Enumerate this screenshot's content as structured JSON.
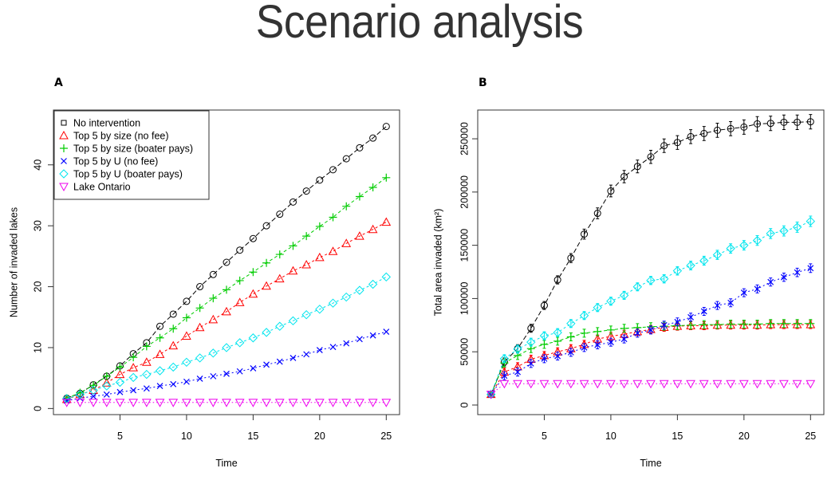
{
  "title": "Scenario analysis",
  "panels": [
    "A",
    "B"
  ],
  "legend": {
    "entries": [
      {
        "label": "No intervention",
        "marker": "square",
        "color": "#000000"
      },
      {
        "label": "Top 5 by size (no fee)",
        "marker": "triangle-up",
        "color": "#ff0000"
      },
      {
        "label": "Top 5 by size (boater pays)",
        "marker": "plus",
        "color": "#00cc00"
      },
      {
        "label": "Top 5 by U (no fee)",
        "marker": "x",
        "color": "#0000ff"
      },
      {
        "label": "Top 5 by U (boater pays)",
        "marker": "diamond",
        "color": "#00e5ee"
      },
      {
        "label": "Lake Ontario",
        "marker": "triangle-down",
        "color": "#ee00ee"
      }
    ],
    "placement": "top-left"
  },
  "chart_data": [
    {
      "panel": "A",
      "type": "line",
      "title": "",
      "xlabel": "Time",
      "ylabel": "Number of invaded lakes",
      "xlim": [
        0,
        26
      ],
      "ylim": [
        -1,
        49
      ],
      "xticks": [
        5,
        10,
        15,
        20,
        25
      ],
      "yticks": [
        0,
        10,
        20,
        30,
        40
      ],
      "grid": false,
      "legend_placement": "top-left",
      "x": [
        1,
        2,
        3,
        4,
        5,
        6,
        7,
        8,
        9,
        10,
        11,
        12,
        13,
        14,
        15,
        16,
        17,
        18,
        19,
        20,
        21,
        22,
        23,
        24,
        25
      ],
      "series": [
        {
          "name": "No intervention",
          "values": [
            1.7,
            2.5,
            3.9,
            5.3,
            7.0,
            9.0,
            10.8,
            13.5,
            15.5,
            17.6,
            20.0,
            22.0,
            24.0,
            26.0,
            27.9,
            30.0,
            31.9,
            33.9,
            35.7,
            37.5,
            39.2,
            41.0,
            42.8,
            44.4,
            46.3
          ]
        },
        {
          "name": "Top 5 by size (no fee)",
          "values": [
            1.5,
            2.3,
            3.0,
            4.2,
            5.6,
            6.7,
            7.6,
            8.9,
            10.3,
            11.9,
            13.3,
            14.6,
            15.9,
            17.4,
            18.8,
            20.1,
            21.3,
            22.6,
            23.6,
            24.8,
            25.8,
            27.1,
            28.3,
            29.4,
            30.6
          ]
        },
        {
          "name": "Top 5 by size (boater pays)",
          "values": [
            1.7,
            2.6,
            3.8,
            5.3,
            6.8,
            8.4,
            10.2,
            11.6,
            13.1,
            14.9,
            16.5,
            18.1,
            19.5,
            21.0,
            22.4,
            23.9,
            25.3,
            26.7,
            28.3,
            29.9,
            31.4,
            33.2,
            34.8,
            36.3,
            37.9
          ]
        },
        {
          "name": "Top 5 by U (no fee)",
          "values": [
            1.3,
            1.7,
            2.0,
            2.3,
            2.7,
            3.0,
            3.3,
            3.7,
            4.0,
            4.4,
            4.9,
            5.3,
            5.7,
            6.1,
            6.6,
            7.2,
            7.7,
            8.3,
            8.9,
            9.6,
            10.1,
            10.7,
            11.4,
            12.0,
            12.6
          ]
        },
        {
          "name": "Top 5 by U (boater pays)",
          "values": [
            1.6,
            2.3,
            3.0,
            3.7,
            4.3,
            5.1,
            5.6,
            6.2,
            6.8,
            7.6,
            8.3,
            9.1,
            10.0,
            10.8,
            11.6,
            12.5,
            13.5,
            14.4,
            15.4,
            16.3,
            17.3,
            18.3,
            19.4,
            20.4,
            21.6
          ]
        },
        {
          "name": "Lake Ontario",
          "values": [
            1.0,
            1.0,
            1.0,
            1.0,
            1.0,
            1.0,
            1.0,
            1.0,
            1.0,
            1.0,
            1.0,
            1.0,
            1.0,
            1.0,
            1.0,
            1.0,
            1.0,
            1.0,
            1.0,
            1.0,
            1.0,
            1.0,
            1.0,
            1.0,
            1.0
          ]
        }
      ]
    },
    {
      "panel": "B",
      "type": "line",
      "title": "",
      "xlabel": "Time",
      "ylabel": "Total area invaded (km²)",
      "xlim": [
        0,
        26
      ],
      "ylim": [
        -9000,
        277000
      ],
      "xticks": [
        5,
        10,
        15,
        20,
        25
      ],
      "yticks": [
        0,
        50000,
        100000,
        150000,
        200000,
        250000
      ],
      "grid": false,
      "error_bars": true,
      "x": [
        1,
        2,
        3,
        4,
        5,
        6,
        7,
        8,
        9,
        10,
        11,
        12,
        13,
        14,
        15,
        16,
        17,
        18,
        19,
        20,
        21,
        22,
        23,
        24,
        25
      ],
      "series": [
        {
          "name": "No intervention",
          "values": [
            10000,
            40500,
            53000,
            72000,
            93500,
            117500,
            138000,
            160500,
            180000,
            201000,
            214500,
            224000,
            233000,
            243500,
            246500,
            252000,
            255000,
            258000,
            259500,
            261000,
            264000,
            264500,
            265500,
            265500,
            266000
          ]
        },
        {
          "name": "Top 5 by size (no fee)",
          "values": [
            10000,
            31000,
            36000,
            43000,
            46500,
            50000,
            53000,
            57000,
            62000,
            64500,
            66500,
            69000,
            71000,
            73000,
            74000,
            74500,
            74500,
            75000,
            75000,
            75000,
            75000,
            75500,
            75500,
            75500,
            75500
          ]
        },
        {
          "name": "Top 5 by size (boater pays)",
          "values": [
            10000,
            39500,
            46500,
            53000,
            57000,
            60000,
            64000,
            67500,
            69000,
            70500,
            72000,
            72700,
            73500,
            74000,
            74500,
            75000,
            75500,
            75500,
            76000,
            76000,
            76000,
            76500,
            76500,
            76500,
            76500
          ]
        },
        {
          "name": "Top 5 by U (no fee)",
          "values": [
            10000,
            27500,
            31000,
            39000,
            43500,
            46000,
            49500,
            54000,
            56500,
            59000,
            62000,
            67500,
            70500,
            75000,
            78000,
            82500,
            88000,
            93500,
            96000,
            105500,
            109000,
            115500,
            120000,
            124500,
            128500
          ]
        },
        {
          "name": "Top 5 by U (boater pays)",
          "values": [
            10000,
            43500,
            52500,
            59000,
            65000,
            68000,
            76500,
            84000,
            91500,
            97500,
            103000,
            111000,
            117000,
            118500,
            126000,
            131000,
            135500,
            141000,
            147000,
            150000,
            154500,
            161000,
            163500,
            167000,
            172500
          ]
        },
        {
          "name": "Lake Ontario",
          "values": [
            10000,
            20000,
            20000,
            20000,
            20000,
            20000,
            20000,
            20000,
            20000,
            20000,
            20000,
            20000,
            20000,
            20000,
            20000,
            20000,
            20000,
            20000,
            20000,
            20000,
            20000,
            20000,
            20000,
            20000,
            20000
          ]
        }
      ]
    }
  ]
}
